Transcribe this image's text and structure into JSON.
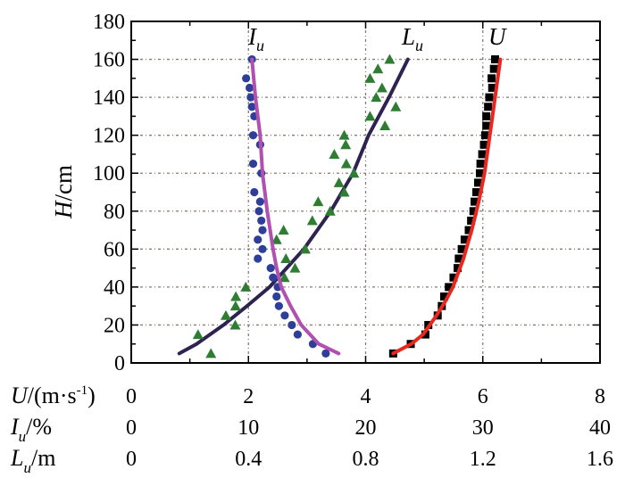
{
  "chart_data": {
    "type": "scatter",
    "title": "",
    "ylabel": "H/cm",
    "ylabel_parts": {
      "var": "H",
      "unit": "/cm"
    },
    "ylim": [
      0,
      180
    ],
    "yticks": [
      "0",
      "20",
      "40",
      "60",
      "80",
      "100",
      "120",
      "140",
      "160",
      "180"
    ],
    "grid": true,
    "x_axes": [
      {
        "key": "U",
        "label_var": "U",
        "label_unit": "/(m·s",
        "label_exp": "-1",
        "label_close": ")",
        "xlim": [
          0,
          8
        ],
        "ticks": [
          "0",
          "2",
          "4",
          "6",
          "8"
        ]
      },
      {
        "key": "Iu",
        "label_var": "I",
        "label_sub": "u",
        "label_unit": "/%",
        "xlim": [
          0,
          40
        ],
        "ticks": [
          "0",
          "10",
          "20",
          "30",
          "40"
        ]
      },
      {
        "key": "Lu",
        "label_var": "L",
        "label_sub": "u",
        "label_unit": "/m",
        "xlim": [
          0,
          1.6
        ],
        "ticks": [
          "0",
          "0.4",
          "0.8",
          "1.2",
          "1.6"
        ]
      }
    ],
    "annotations": [
      {
        "series": "Iu",
        "var": "I",
        "sub": "u"
      },
      {
        "series": "Lu",
        "var": "L",
        "sub": "u"
      },
      {
        "series": "U",
        "var": "U",
        "sub": ""
      }
    ],
    "series": [
      {
        "name": "U measured",
        "axis": "U",
        "marker": "square",
        "color": "#000000",
        "x": [
          4.47,
          4.77,
          5.02,
          5.07,
          5.23,
          5.3,
          5.34,
          5.42,
          5.5,
          5.57,
          5.59,
          5.64,
          5.69,
          5.76,
          5.8,
          5.84,
          5.86,
          5.89,
          5.92,
          5.95,
          5.96,
          5.99,
          6.02,
          6.04,
          6.06,
          6.06,
          6.09,
          6.11,
          6.16,
          6.15,
          6.19,
          6.21
        ],
        "y": [
          5,
          10,
          15,
          20,
          25,
          30,
          35,
          40,
          45,
          50,
          55,
          60,
          65,
          70,
          75,
          80,
          85,
          90,
          95,
          100,
          105,
          110,
          115,
          120,
          125,
          130,
          135,
          140,
          145,
          150,
          155,
          160
        ]
      },
      {
        "name": "U fit",
        "axis": "U",
        "marker": "line",
        "color": "#e8281e",
        "x": [
          4.47,
          4.78,
          4.98,
          5.21,
          5.37,
          5.49,
          5.67,
          5.81,
          5.93,
          6.03,
          6.12,
          6.21,
          6.3
        ],
        "y": [
          5,
          10,
          15,
          25,
          33,
          40,
          55,
          70,
          85,
          100,
          120,
          140,
          160
        ]
      },
      {
        "name": "Iu measured",
        "axis": "Iu",
        "marker": "circle",
        "color": "#2e3f9a",
        "x": [
          10.3,
          9.8,
          10.1,
          10.2,
          10.3,
          10.5,
          10.4,
          11.0,
          10.4,
          11.1,
          10.5,
          11.0,
          10.9,
          11.1,
          11.2,
          10.8,
          11.2,
          10.8,
          11.9,
          12.1,
          12.5,
          12.4,
          12.6,
          13.1,
          13.7,
          14.2,
          15.5,
          16.6
        ],
        "y": [
          160,
          150,
          145,
          140,
          135,
          130,
          120,
          115,
          105,
          100,
          90,
          85,
          80,
          75,
          70,
          65,
          60,
          55,
          50,
          45,
          40,
          35,
          30,
          25,
          20,
          15,
          10,
          5
        ]
      },
      {
        "name": "Iu fit",
        "axis": "Iu",
        "marker": "line",
        "color": "#b050b0",
        "x": [
          10.3,
          10.6,
          11.0,
          11.2,
          11.6,
          12.1,
          12.4,
          12.8,
          13.6,
          14.5,
          16.0,
          17.7
        ],
        "y": [
          160,
          140,
          120,
          100,
          80,
          60,
          50,
          40,
          30,
          20,
          10,
          5
        ]
      },
      {
        "name": "Lu measured",
        "axis": "Lu",
        "marker": "triangle",
        "color": "#2e7d32",
        "x": [
          0.228,
          0.272,
          0.355,
          0.323,
          0.356,
          0.357,
          0.391,
          0.523,
          0.528,
          0.559,
          0.496,
          0.52,
          0.594,
          0.618,
          0.638,
          0.679,
          0.727,
          0.709,
          0.76,
          0.734,
          0.693,
          0.732,
          0.727,
          0.815,
          0.866,
          0.903,
          0.836,
          0.856,
          0.815,
          0.842,
          0.882
        ],
        "y": [
          15,
          5,
          20,
          25,
          30,
          35,
          40,
          45,
          55,
          50,
          65,
          70,
          60,
          75,
          85,
          80,
          90,
          95,
          100,
          105,
          110,
          115,
          120,
          130,
          125,
          135,
          140,
          145,
          150,
          155,
          160
        ]
      },
      {
        "name": "Lu fit",
        "axis": "Lu",
        "marker": "line",
        "color": "#2e2350",
        "x": [
          0.164,
          0.223,
          0.315,
          0.395,
          0.472,
          0.589,
          0.681,
          0.757,
          0.81,
          0.88,
          0.944
        ],
        "y": [
          5,
          10,
          20,
          30,
          40,
          60,
          80,
          100,
          120,
          140,
          160
        ]
      }
    ]
  }
}
